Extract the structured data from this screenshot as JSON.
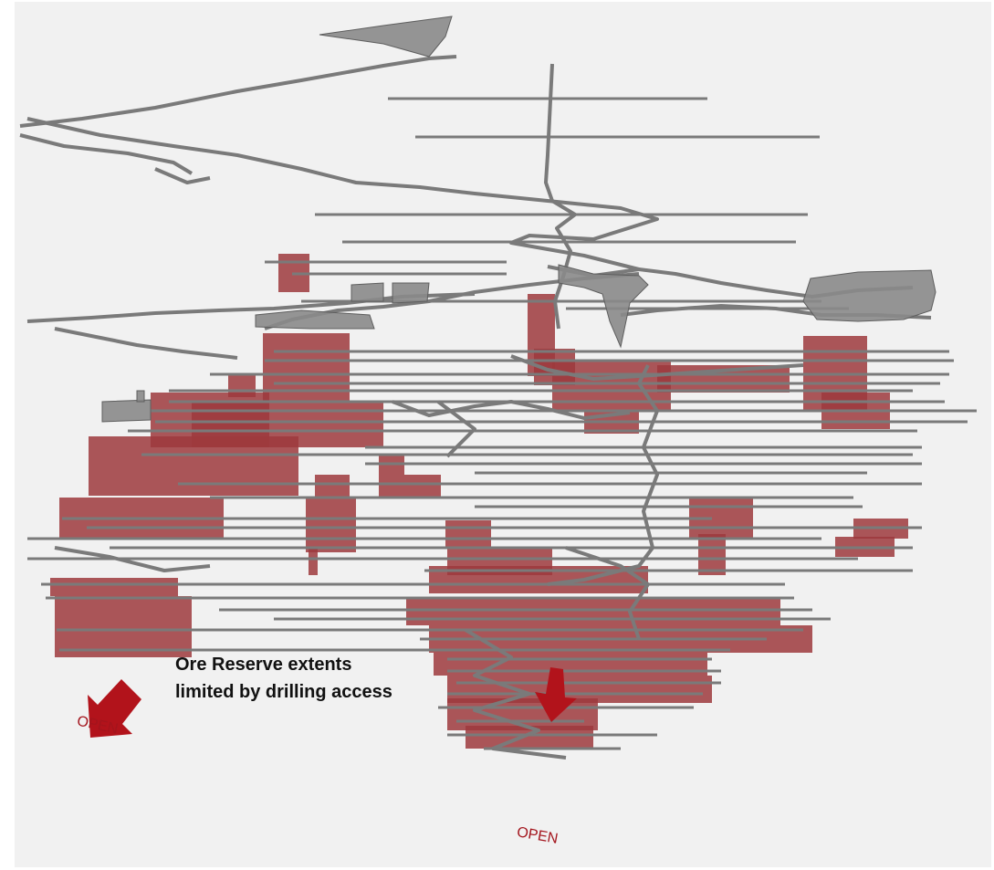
{
  "figure": {
    "annotation_lines": [
      "Ore Reserve extents",
      "limited by drilling access"
    ],
    "open_labels": [
      "OPEN",
      "OPEN"
    ],
    "colors": {
      "background": "#f1f1f1",
      "ore_reserve_block": "#9e3a3d",
      "development_workings": "#7a7a7a",
      "open_arrow": "#b2131b"
    },
    "icons": [
      "down-left-arrow-icon",
      "down-arrow-icon"
    ]
  }
}
